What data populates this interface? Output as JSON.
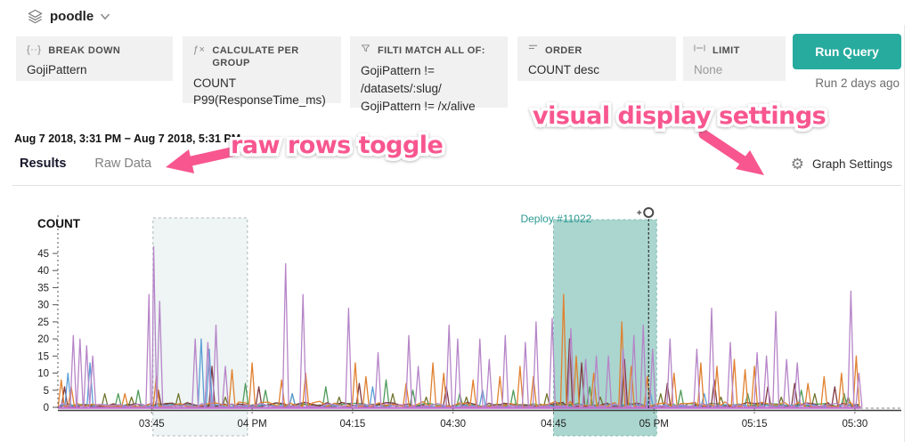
{
  "header": {
    "dataset": "poodle",
    "dataset_icon": "layers-icon"
  },
  "query_builder": {
    "breakdown": {
      "label": "BREAK DOWN",
      "icon_glyph": "{··}",
      "value": "GojiPattern"
    },
    "calculate": {
      "label": "CALCULATE PER GROUP",
      "icon_glyph": "ƒ×",
      "values": [
        "COUNT",
        "P99(ResponseTime_ms)"
      ]
    },
    "filter": {
      "label": "FILTI MATCH ALL OF:",
      "values": [
        "GojiPattern != /datasets/:slug/",
        "GojiPattern != /x/alive"
      ]
    },
    "order": {
      "label": "ORDER",
      "value": "COUNT desc"
    },
    "limit": {
      "label": "LIMIT",
      "value": "None"
    },
    "run_button_label": "Run Query",
    "run_button_color": "#27ab9e",
    "last_run": "Run 2 days ago"
  },
  "results_bar": {
    "time_range": "Aug 7 2018, 3:31 PM − Aug 7 2018, 5:31 PM",
    "tabs": [
      "Results",
      "Raw Data"
    ],
    "active_tab": "Results",
    "graph_settings_label": "Graph Settings",
    "gear_glyph": "⚙"
  },
  "annotations": {
    "raw_rows": "raw rows toggle",
    "visual_display": "visual display settings",
    "color": "#f8568f"
  },
  "chart_data": {
    "type": "line",
    "title": "COUNT",
    "x_start_label": "3:31 PM",
    "x_end_label": "5:31 PM",
    "total_minutes": 120,
    "x_ticks": [
      {
        "min": 14,
        "label": "03:45"
      },
      {
        "min": 29,
        "label": "04 PM"
      },
      {
        "min": 44,
        "label": "04:15"
      },
      {
        "min": 59,
        "label": "04:30"
      },
      {
        "min": 74,
        "label": "04:45"
      },
      {
        "min": 89,
        "label": "05 PM"
      },
      {
        "min": 104,
        "label": "05:15"
      },
      {
        "min": 119,
        "label": "05:30"
      }
    ],
    "y_ticks": [
      0,
      5,
      10,
      15,
      20,
      25,
      30,
      35,
      40,
      45
    ],
    "ylim": [
      0,
      47
    ],
    "grid": false,
    "legend": false,
    "regions": [
      {
        "name": "highlight-region",
        "label": "",
        "start_min": 14.2,
        "end_min": 28.3,
        "fill": "#edf4f3",
        "border": "#aab8b6"
      },
      {
        "name": "deploy-region",
        "label": "Deploy #11022",
        "start_min": 74,
        "end_min": 89.4,
        "marker_min": 88.2,
        "fill": "#a3d2cb",
        "border": "#7fb9b1",
        "label_color": "#2e9a92"
      }
    ],
    "series": [
      {
        "name": "olive",
        "color": "#72752f",
        "noise": 1.0,
        "spikes": [
          [
            7,
            4
          ],
          [
            11,
            3
          ],
          [
            18,
            4
          ],
          [
            25,
            3
          ],
          [
            35,
            4
          ],
          [
            42,
            3
          ],
          [
            50,
            4
          ],
          [
            55,
            3
          ],
          [
            61,
            3
          ],
          [
            73,
            4
          ],
          [
            81,
            3
          ],
          [
            90,
            4
          ],
          [
            99,
            3
          ],
          [
            108,
            3
          ],
          [
            113,
            4
          ],
          [
            118,
            3
          ]
        ]
      },
      {
        "name": "green",
        "color": "#4f9b5a",
        "noise": 1.2,
        "spikes": [
          [
            9,
            4
          ],
          [
            12,
            5
          ],
          [
            28,
            7
          ],
          [
            31,
            5
          ],
          [
            40,
            6
          ],
          [
            49,
            8
          ],
          [
            53,
            5
          ],
          [
            60,
            4
          ],
          [
            68,
            5
          ],
          [
            79.4,
            6
          ],
          [
            93,
            5
          ],
          [
            103,
            4
          ],
          [
            111,
            5
          ],
          [
            117.4,
            4
          ]
        ]
      },
      {
        "name": "maroon",
        "color": "#7e3b41",
        "noise": 1.5,
        "spikes": [
          [
            1,
            6
          ],
          [
            15,
            5
          ],
          [
            23,
            12
          ],
          [
            30,
            6
          ],
          [
            45,
            7
          ],
          [
            58,
            6
          ],
          [
            76.4,
            20
          ],
          [
            78.2,
            13
          ],
          [
            84.6,
            14
          ],
          [
            91,
            7
          ],
          [
            98,
            8
          ],
          [
            106,
            6
          ],
          [
            110,
            7
          ],
          [
            116,
            6
          ]
        ]
      },
      {
        "name": "blue",
        "color": "#5a9fd6",
        "noise": 0.8,
        "spikes": [
          [
            1.5,
            10
          ],
          [
            4.8,
            13
          ],
          [
            21.4,
            20
          ],
          [
            22.6,
            17
          ],
          [
            35,
            4
          ],
          [
            47,
            6
          ],
          [
            63.4,
            5
          ],
          [
            88.4,
            5
          ],
          [
            96.5,
            4
          ]
        ]
      },
      {
        "name": "orange",
        "color": "#e0802f",
        "noise": 1.8,
        "spikes": [
          [
            0.5,
            8
          ],
          [
            2,
            6
          ],
          [
            10,
            4
          ],
          [
            14.7,
            9
          ],
          [
            26,
            11
          ],
          [
            29,
            13
          ],
          [
            33.4,
            8
          ],
          [
            37,
            10
          ],
          [
            44.4,
            13
          ],
          [
            46,
            9
          ],
          [
            52,
            7
          ],
          [
            56,
            13
          ],
          [
            57.6,
            10
          ],
          [
            62,
            8
          ],
          [
            66,
            9
          ],
          [
            69,
            12
          ],
          [
            71,
            9
          ],
          [
            75.5,
            33
          ],
          [
            77.4,
            15
          ],
          [
            80,
            10
          ],
          [
            84.2,
            25
          ],
          [
            85.6,
            12
          ],
          [
            88,
            9
          ],
          [
            92,
            10
          ],
          [
            96,
            13
          ],
          [
            98.4,
            12
          ],
          [
            101,
            14
          ],
          [
            102.6,
            11
          ],
          [
            104,
            12
          ],
          [
            112,
            7
          ],
          [
            114.4,
            9
          ],
          [
            117,
            10
          ],
          [
            119.2,
            15
          ]
        ]
      },
      {
        "name": "purple",
        "color": "#b685c8",
        "noise": 1.2,
        "spikes": [
          [
            2.3,
            21
          ],
          [
            3.3,
            20
          ],
          [
            4.3,
            18
          ],
          [
            5.2,
            15
          ],
          [
            13.6,
            33
          ],
          [
            14.3,
            47
          ],
          [
            15.2,
            31
          ],
          [
            20.5,
            20
          ],
          [
            22.4,
            19
          ],
          [
            23.6,
            24
          ],
          [
            25,
            12
          ],
          [
            34,
            42
          ],
          [
            36.6,
            33
          ],
          [
            43.4,
            29
          ],
          [
            47.8,
            16
          ],
          [
            52.4,
            21
          ],
          [
            53.8,
            12
          ],
          [
            58.4,
            24
          ],
          [
            59.7,
            20
          ],
          [
            63,
            20
          ],
          [
            64.4,
            14
          ],
          [
            66.8,
            21
          ],
          [
            69.8,
            19
          ],
          [
            71.4,
            25
          ],
          [
            73.8,
            26
          ],
          [
            76.6,
            23
          ],
          [
            78.8,
            14
          ],
          [
            80.4,
            15
          ],
          [
            82.2,
            15
          ],
          [
            84.4,
            17
          ],
          [
            86,
            21
          ],
          [
            87.4,
            24
          ],
          [
            88.8,
            17
          ],
          [
            91.4,
            20
          ],
          [
            95.4,
            17
          ],
          [
            97.6,
            29
          ],
          [
            100.4,
            19
          ],
          [
            104.4,
            16
          ],
          [
            105.8,
            15
          ],
          [
            107.2,
            28
          ],
          [
            108.8,
            14
          ],
          [
            110.4,
            13
          ],
          [
            118.4,
            34
          ],
          [
            119.6,
            10
          ]
        ]
      }
    ],
    "flat_zero_series": {
      "name": "flat-zero",
      "color": "#c36fd0"
    }
  }
}
